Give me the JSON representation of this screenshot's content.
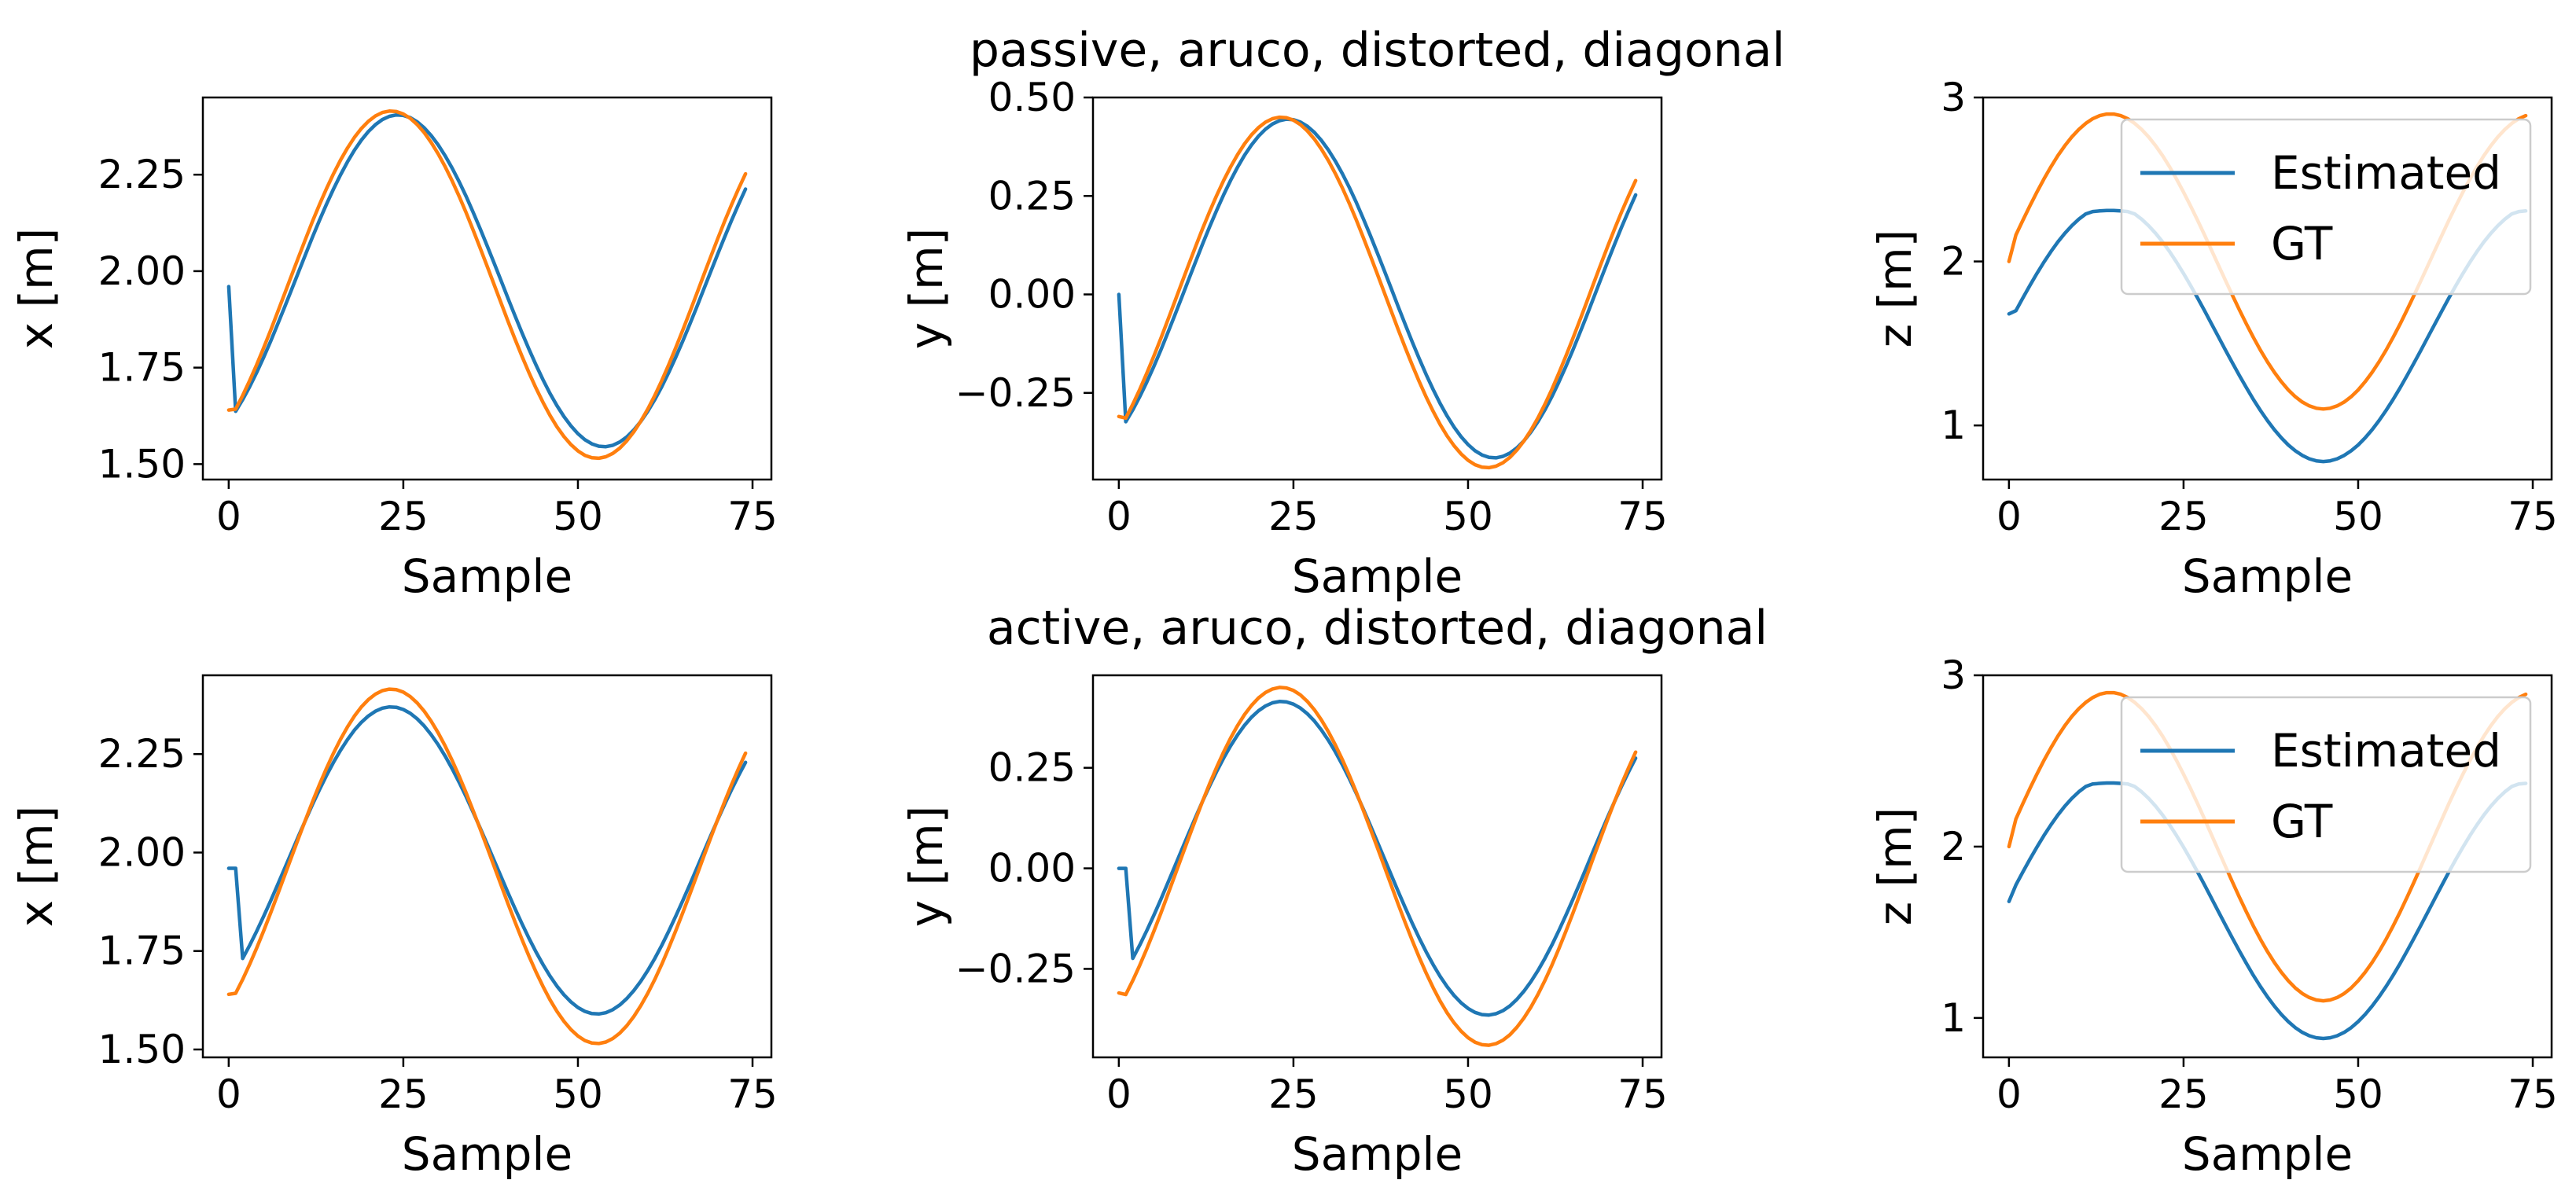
{
  "colors": {
    "estimated": "#1f77b4",
    "gt": "#ff7f0e"
  },
  "chart_data": [
    {
      "row": 0,
      "col": 0,
      "type": "line",
      "title": "",
      "xlabel": "Sample",
      "ylabel": "x [m]",
      "xlim": [
        -3.7,
        77.7
      ],
      "ylim": [
        1.46,
        2.45
      ],
      "xticks": [
        0,
        25,
        50,
        75
      ],
      "xtick_labels": [
        "0",
        "25",
        "50",
        "75"
      ],
      "yticks": [
        1.5,
        1.75,
        2.0,
        2.25
      ],
      "ytick_labels": [
        "1.50",
        "1.75",
        "2.00",
        "2.25"
      ],
      "legend": null,
      "series": [
        {
          "name": "Estimated",
          "color": "#1f77b4",
          "shape": "sine",
          "start": 1.96,
          "amp": 0.43,
          "offset": 1.975,
          "phase": 0.0,
          "shift": 1.0
        },
        {
          "name": "GT",
          "color": "#ff7f0e",
          "shape": "sine",
          "start": 1.64,
          "amp": 0.45,
          "offset": 1.965,
          "phase": 0.0,
          "shift": 0.0
        }
      ]
    },
    {
      "row": 0,
      "col": 1,
      "type": "line",
      "title": "passive, aruco, distorted, diagonal",
      "xlabel": "Sample",
      "ylabel": "y [m]",
      "xlim": [
        -3.7,
        77.7
      ],
      "ylim": [
        -0.47,
        0.5
      ],
      "xticks": [
        0,
        25,
        50,
        75
      ],
      "xtick_labels": [
        "0",
        "25",
        "50",
        "75"
      ],
      "yticks": [
        -0.25,
        0.0,
        0.25,
        0.5
      ],
      "ytick_labels": [
        "−0.25",
        "0.00",
        "0.25",
        "0.50"
      ],
      "legend": null,
      "series": [
        {
          "name": "Estimated",
          "color": "#1f77b4",
          "shape": "sine",
          "start": 0.0,
          "amp": 0.43,
          "offset": 0.015,
          "phase": 0.0,
          "shift": 1.0
        },
        {
          "name": "GT",
          "color": "#ff7f0e",
          "shape": "sine",
          "start": -0.31,
          "amp": 0.445,
          "offset": 0.005,
          "phase": 0.0,
          "shift": 0.0
        }
      ]
    },
    {
      "row": 0,
      "col": 2,
      "type": "line",
      "title": "",
      "xlabel": "Sample",
      "ylabel": "z [m]",
      "xlim": [
        -3.7,
        77.7
      ],
      "ylim": [
        0.67,
        3.0
      ],
      "xticks": [
        0,
        25,
        50,
        75
      ],
      "xtick_labels": [
        "0",
        "25",
        "50",
        "75"
      ],
      "yticks": [
        1,
        2,
        3
      ],
      "ytick_labels": [
        "1",
        "2",
        "3"
      ],
      "legend": {
        "entries": [
          "Estimated",
          "GT"
        ],
        "placement": "upper right"
      },
      "series": [
        {
          "name": "Estimated",
          "color": "#1f77b4",
          "shape": "zwave",
          "start": 1.68,
          "amp": 0.78,
          "offset": 1.56,
          "phase": 0.0,
          "shift": 0.0
        },
        {
          "name": "GT",
          "color": "#ff7f0e",
          "shape": "zwave",
          "start": 2.0,
          "amp": 0.9,
          "offset": 2.0,
          "phase": 0.0,
          "shift": 0.0
        }
      ]
    },
    {
      "row": 1,
      "col": 0,
      "type": "line",
      "title": "",
      "xlabel": "Sample",
      "ylabel": "x [m]",
      "xlim": [
        -3.7,
        77.7
      ],
      "ylim": [
        1.48,
        2.45
      ],
      "xticks": [
        0,
        25,
        50,
        75
      ],
      "xtick_labels": [
        "0",
        "25",
        "50",
        "75"
      ],
      "yticks": [
        1.5,
        1.75,
        2.0,
        2.25
      ],
      "ytick_labels": [
        "1.50",
        "1.75",
        "2.00",
        "2.25"
      ],
      "legend": null,
      "series": [
        {
          "name": "Estimated",
          "color": "#1f77b4",
          "shape": "sine",
          "start": 1.96,
          "amp": 0.39,
          "offset": 1.98,
          "phase": 0.0,
          "shift": 0.0,
          "hold": 2
        },
        {
          "name": "GT",
          "color": "#ff7f0e",
          "shape": "sine",
          "start": 1.64,
          "amp": 0.45,
          "offset": 1.965,
          "phase": 0.0,
          "shift": 0.0
        }
      ]
    },
    {
      "row": 1,
      "col": 1,
      "type": "line",
      "title": "active, aruco, distorted, diagonal",
      "xlabel": "Sample",
      "ylabel": "y [m]",
      "xlim": [
        -3.7,
        77.7
      ],
      "ylim": [
        -0.47,
        0.48
      ],
      "xticks": [
        0,
        25,
        50,
        75
      ],
      "xtick_labels": [
        "0",
        "25",
        "50",
        "75"
      ],
      "yticks": [
        -0.25,
        0.0,
        0.25
      ],
      "ytick_labels": [
        "−0.25",
        "0.00",
        "0.25"
      ],
      "legend": null,
      "series": [
        {
          "name": "Estimated",
          "color": "#1f77b4",
          "shape": "sine",
          "start": 0.0,
          "amp": 0.39,
          "offset": 0.025,
          "phase": 0.0,
          "shift": 0.0,
          "hold": 2
        },
        {
          "name": "GT",
          "color": "#ff7f0e",
          "shape": "sine",
          "start": -0.31,
          "amp": 0.445,
          "offset": 0.005,
          "phase": 0.0,
          "shift": 0.0
        }
      ]
    },
    {
      "row": 1,
      "col": 2,
      "type": "line",
      "title": "",
      "xlabel": "Sample",
      "ylabel": "z [m]",
      "xlim": [
        -3.7,
        77.7
      ],
      "ylim": [
        0.77,
        3.0
      ],
      "xticks": [
        0,
        25,
        50,
        75
      ],
      "xtick_labels": [
        "0",
        "25",
        "50",
        "75"
      ],
      "yticks": [
        1,
        2,
        3
      ],
      "ytick_labels": [
        "1",
        "2",
        "3"
      ],
      "legend": {
        "entries": [
          "Estimated",
          "GT"
        ],
        "placement": "upper right"
      },
      "series": [
        {
          "name": "Estimated",
          "color": "#1f77b4",
          "shape": "zwave",
          "start": 1.68,
          "amp": 0.76,
          "offset": 1.64,
          "phase": 0.0,
          "shift": 0.0
        },
        {
          "name": "GT",
          "color": "#ff7f0e",
          "shape": "zwave",
          "start": 2.0,
          "amp": 0.9,
          "offset": 2.0,
          "phase": 0.0,
          "shift": 0.0
        }
      ]
    }
  ]
}
